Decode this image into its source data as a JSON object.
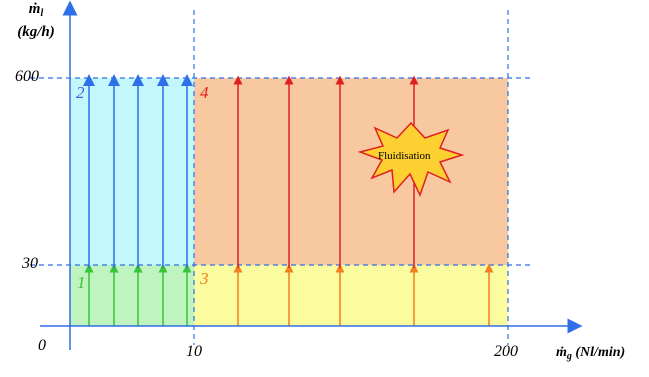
{
  "axes": {
    "y_label_line1": "ṁ",
    "y_label_sub": "l",
    "y_label_line2": "(kg/h)",
    "x_label_main": "ṁ",
    "x_label_sub": "g",
    "x_label_unit": "(Nl/min)",
    "origin": "0",
    "y_ticks": [
      "30",
      "600"
    ],
    "x_ticks": [
      "10",
      "200"
    ]
  },
  "zones": [
    {
      "number": "1",
      "color": "#39c339"
    },
    {
      "number": "2",
      "color": "#3a5fe0"
    },
    {
      "number": "3",
      "color": "#f08020"
    },
    {
      "number": "4",
      "color": "#e02020"
    }
  ],
  "annotation": {
    "text": "Fluidisation"
  },
  "colors": {
    "axis": "#2f6fe8",
    "zone1_fill": "#bff3bf",
    "zone2_fill": "#c4f7fb",
    "zone3_fill": "#fbfc9f",
    "zone4_fill": "#f8c8a0",
    "green_arrow": "#39c339",
    "blue_arrow": "#2f6fe8",
    "orange_arrow": "#f08020",
    "red_arrow": "#e02020",
    "burst_fill": "#fcd030",
    "burst_stroke": "#e02020"
  }
}
